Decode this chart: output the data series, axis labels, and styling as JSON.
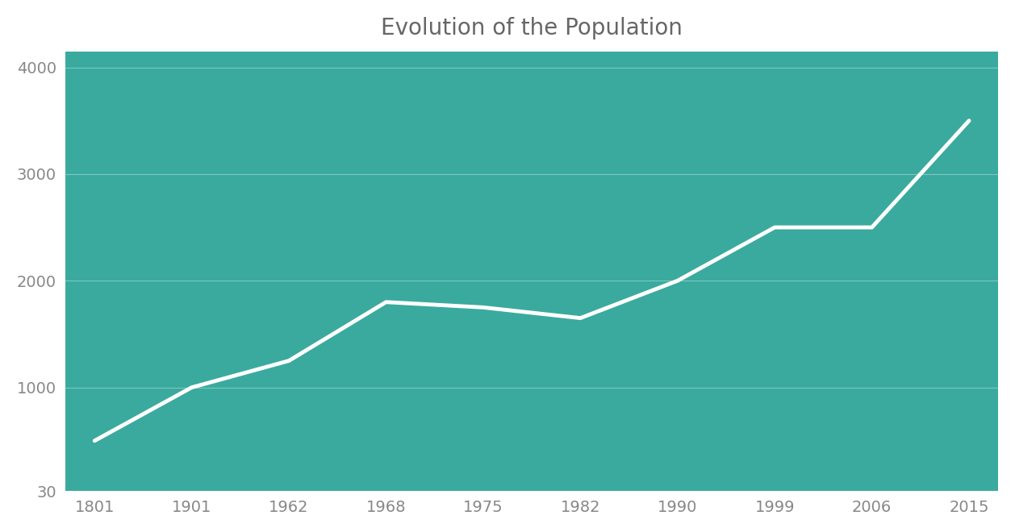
{
  "title": "Evolution of the Population",
  "x_labels": [
    "1801",
    "1901",
    "1962",
    "1968",
    "1975",
    "1982",
    "1990",
    "1999",
    "2006",
    "2015"
  ],
  "y": [
    500,
    1000,
    1250,
    1800,
    1750,
    1650,
    2000,
    2500,
    2500,
    3500
  ],
  "y_ticks": [
    30,
    1000,
    2000,
    3000,
    4000
  ],
  "ylim_min": 30,
  "ylim_max": 4150,
  "bg_color": "#3aaa9e",
  "line_color": "#ffffff",
  "line_width": 3.5,
  "title_color": "#666666",
  "title_fontsize": 20,
  "tick_color": "#888888",
  "tick_fontsize": 14,
  "grid_color": "#ffffff",
  "grid_alpha": 0.35,
  "grid_linewidth": 0.8,
  "fig_bg_color": "#ffffff",
  "figsize": [
    12.58,
    6.6
  ],
  "dpi": 100
}
